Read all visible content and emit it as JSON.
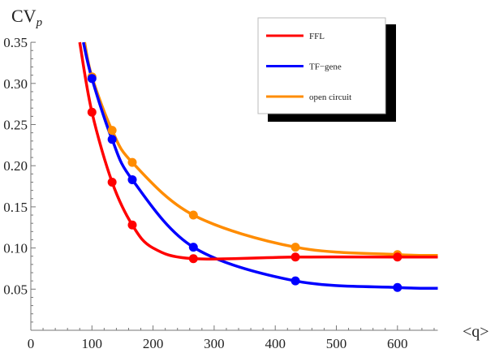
{
  "chart_data": {
    "type": "line",
    "ylabel": "CV",
    "ylabel_sub": "p",
    "xlabel": "<q>",
    "xlim": [
      0,
      666
    ],
    "ylim": [
      0,
      0.35
    ],
    "xticks": [
      "0",
      "100",
      "200",
      "300",
      "400",
      "500",
      "600"
    ],
    "yticks": [
      "0.05",
      "0.10",
      "0.15",
      "0.20",
      "0.25",
      "0.30",
      "0.35"
    ],
    "grid": false,
    "legend_position": "top-right",
    "series": [
      {
        "name": "FFL",
        "color": "#ff0000",
        "points": [
          [
            100,
            0.265
          ],
          [
            133,
            0.18
          ],
          [
            166,
            0.128
          ],
          [
            266,
            0.087
          ],
          [
            433,
            0.089
          ],
          [
            600,
            0.089
          ]
        ],
        "curve": [
          [
            80,
            0.35
          ],
          [
            100,
            0.265
          ],
          [
            133,
            0.18
          ],
          [
            166,
            0.128
          ],
          [
            200,
            0.1
          ],
          [
            266,
            0.087
          ],
          [
            433,
            0.089
          ],
          [
            600,
            0.089
          ],
          [
            666,
            0.089
          ]
        ]
      },
      {
        "name": "TF−gene",
        "color": "#0000ff",
        "points": [
          [
            100,
            0.306
          ],
          [
            133,
            0.232
          ],
          [
            166,
            0.183
          ],
          [
            266,
            0.101
          ],
          [
            433,
            0.06
          ],
          [
            600,
            0.052
          ]
        ],
        "curve": [
          [
            86,
            0.35
          ],
          [
            100,
            0.306
          ],
          [
            133,
            0.232
          ],
          [
            166,
            0.183
          ],
          [
            266,
            0.101
          ],
          [
            433,
            0.06
          ],
          [
            600,
            0.052
          ],
          [
            666,
            0.051
          ]
        ]
      },
      {
        "name": "open circuit",
        "color": "#ff8c00",
        "points": [
          [
            100,
            0.308
          ],
          [
            133,
            0.243
          ],
          [
            166,
            0.204
          ],
          [
            266,
            0.14
          ],
          [
            433,
            0.101
          ],
          [
            600,
            0.092
          ]
        ],
        "curve": [
          [
            88,
            0.35
          ],
          [
            100,
            0.308
          ],
          [
            133,
            0.243
          ],
          [
            166,
            0.204
          ],
          [
            266,
            0.14
          ],
          [
            433,
            0.101
          ],
          [
            600,
            0.092
          ],
          [
            666,
            0.091
          ]
        ]
      }
    ]
  }
}
